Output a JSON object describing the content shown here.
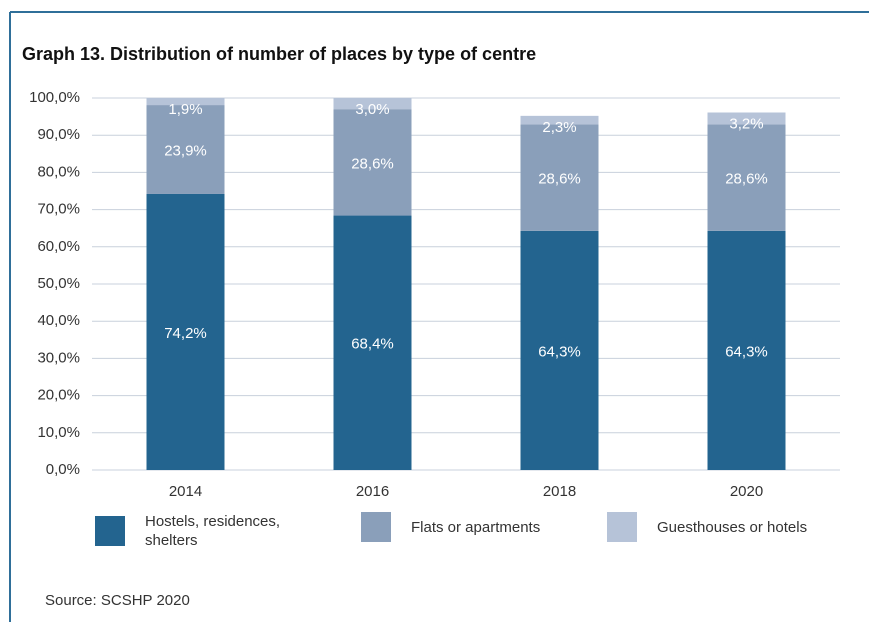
{
  "chart_data": {
    "type": "stacked_bar",
    "title": "Graph 13. Distribution of number of places by type of centre",
    "categories": [
      "2014",
      "2016",
      "2018",
      "2020"
    ],
    "series": [
      {
        "name": "Hostels, residences, shelters",
        "color": "#23648f",
        "values": [
          74.2,
          68.4,
          64.3,
          64.3
        ],
        "value_labels": [
          "74,2%",
          "68,4%",
          "64,3%",
          "64,3%"
        ]
      },
      {
        "name": "Flats or apartments",
        "color": "#8a9fba",
        "values": [
          23.9,
          28.6,
          28.6,
          28.6
        ],
        "value_labels": [
          "23,9%",
          "28,6%",
          "28,6%",
          "28,6%"
        ]
      },
      {
        "name": "Guesthouses or hotels",
        "color": "#b6c3d8",
        "values": [
          1.9,
          3.0,
          2.3,
          3.2
        ],
        "value_labels": [
          "1,9%",
          "3,0%",
          "2,3%",
          "3,2%"
        ]
      }
    ],
    "ylim": [
      0,
      100
    ],
    "yticks": [
      {
        "value": 0,
        "label": "0,0%"
      },
      {
        "value": 10,
        "label": "10,0%"
      },
      {
        "value": 20,
        "label": "20,0%"
      },
      {
        "value": 30,
        "label": "30,0%"
      },
      {
        "value": 40,
        "label": "40,0%"
      },
      {
        "value": 50,
        "label": "50,0%"
      },
      {
        "value": 60,
        "label": "60,0%"
      },
      {
        "value": 70,
        "label": "70,0%"
      },
      {
        "value": 80,
        "label": "80,0%"
      },
      {
        "value": 90,
        "label": "90,0%"
      },
      {
        "value": 100,
        "label": "100,0%"
      }
    ],
    "grid": true,
    "source": "Source: SCSHP 2020"
  }
}
